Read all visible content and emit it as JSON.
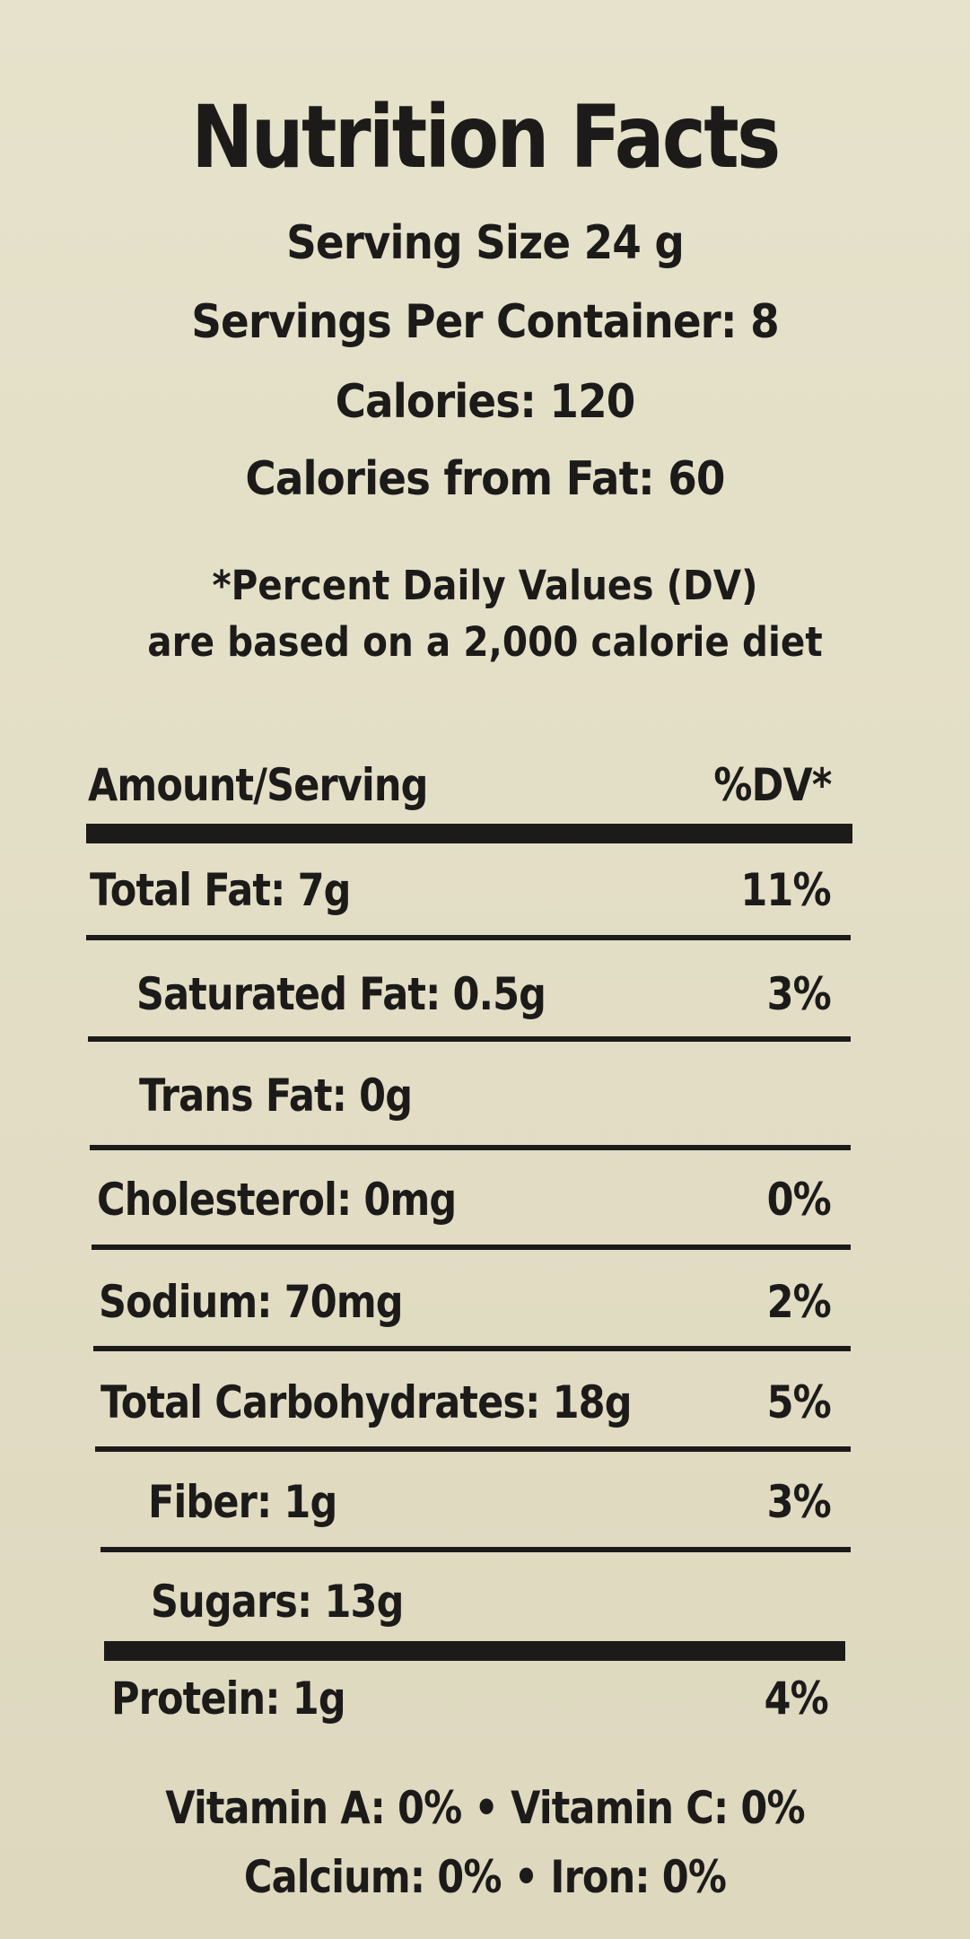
{
  "label": {
    "title": "Nutrition Facts",
    "serving_size": "Serving Size 24 g",
    "servings_per_container": "Servings Per Container: 8",
    "calories": "Calories: 120",
    "calories_from_fat": "Calories from Fat: 60",
    "note_line1": "*Percent Daily Values (DV)",
    "note_line2": "are based on a 2,000 calorie diet",
    "header_amount": "Amount/Serving",
    "header_dv": "%DV*",
    "rows": [
      {
        "label": "Total Fat: 7g",
        "dv": "11%"
      },
      {
        "label": "Saturated Fat: 0.5g",
        "dv": "3%"
      },
      {
        "label": "Trans Fat: 0g",
        "dv": ""
      },
      {
        "label": "Cholesterol: 0mg",
        "dv": "0%"
      },
      {
        "label": "Sodium: 70mg",
        "dv": "2%"
      },
      {
        "label": "Total Carbohydrates: 18g",
        "dv": "5%"
      },
      {
        "label": "Fiber: 1g",
        "dv": "3%"
      },
      {
        "label": "Sugars: 13g",
        "dv": ""
      },
      {
        "label": "Protein: 1g",
        "dv": "4%"
      }
    ],
    "vitamins_line": "Vitamin A: 0% • Vitamin C: 0%",
    "minerals_line": "Calcium: 0% • Iron: 0%"
  }
}
